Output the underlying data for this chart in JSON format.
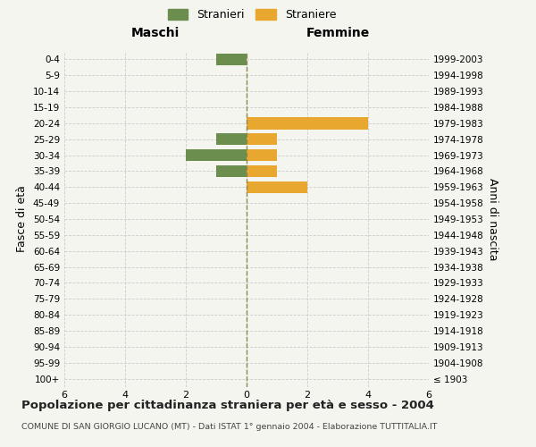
{
  "age_groups": [
    "100+",
    "95-99",
    "90-94",
    "85-89",
    "80-84",
    "75-79",
    "70-74",
    "65-69",
    "60-64",
    "55-59",
    "50-54",
    "45-49",
    "40-44",
    "35-39",
    "30-34",
    "25-29",
    "20-24",
    "15-19",
    "10-14",
    "5-9",
    "0-4"
  ],
  "birth_years": [
    "≤ 1903",
    "1904-1908",
    "1909-1913",
    "1914-1918",
    "1919-1923",
    "1924-1928",
    "1929-1933",
    "1934-1938",
    "1939-1943",
    "1944-1948",
    "1949-1953",
    "1954-1958",
    "1959-1963",
    "1964-1968",
    "1969-1973",
    "1974-1978",
    "1979-1983",
    "1984-1988",
    "1989-1993",
    "1994-1998",
    "1999-2003"
  ],
  "maschi": [
    0,
    0,
    0,
    0,
    0,
    0,
    0,
    0,
    0,
    0,
    0,
    0,
    0,
    1,
    2,
    1,
    0,
    0,
    0,
    0,
    1
  ],
  "femmine": [
    0,
    0,
    0,
    0,
    0,
    0,
    0,
    0,
    0,
    0,
    0,
    0,
    2,
    1,
    1,
    1,
    4,
    0,
    0,
    0,
    0
  ],
  "color_maschi": "#6b8e4e",
  "color_femmine": "#e8a830",
  "xlim": 6,
  "title": "Popolazione per cittadinanza straniera per età e sesso - 2004",
  "subtitle": "COMUNE DI SAN GIORGIO LUCANO (MT) - Dati ISTAT 1° gennaio 2004 - Elaborazione TUTTITALIA.IT",
  "ylabel_left": "Fasce di età",
  "ylabel_right": "Anni di nascita",
  "label_maschi": "Stranieri",
  "label_femmine": "Straniere",
  "header_left": "Maschi",
  "header_right": "Femmine",
  "bg_color": "#f5f5f0",
  "grid_color": "#cccccc"
}
